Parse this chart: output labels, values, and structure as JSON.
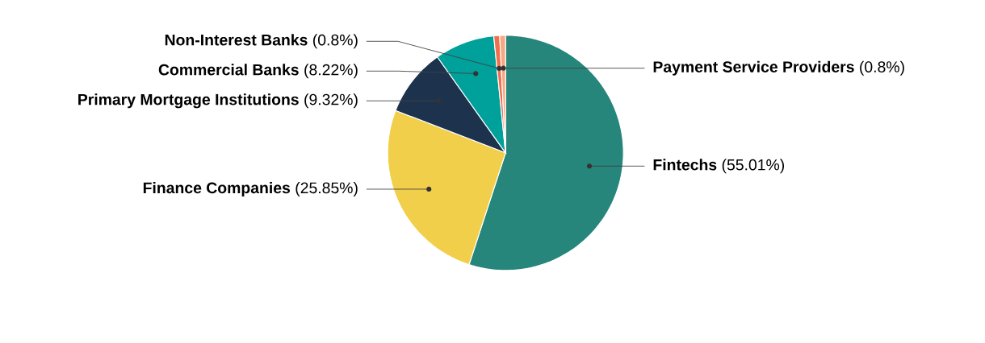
{
  "chart_data": {
    "type": "pie",
    "categories": [
      "Fintechs",
      "Finance Companies",
      "Primary Mortgage Institutions",
      "Commercial Banks",
      "Non-Interest Banks",
      "Payment Service Providers"
    ],
    "values": [
      55.01,
      25.85,
      9.32,
      8.22,
      0.8,
      0.8
    ],
    "colors": [
      "#26867c",
      "#f1cf4a",
      "#1d334d",
      "#00a19a",
      "#f06f4e",
      "#f6a882"
    ],
    "value_labels": [
      "(55.01%)",
      "(25.85%)",
      "(9.32%)",
      "(8.22%)",
      "(0.8%)",
      "(0.8%)"
    ]
  }
}
